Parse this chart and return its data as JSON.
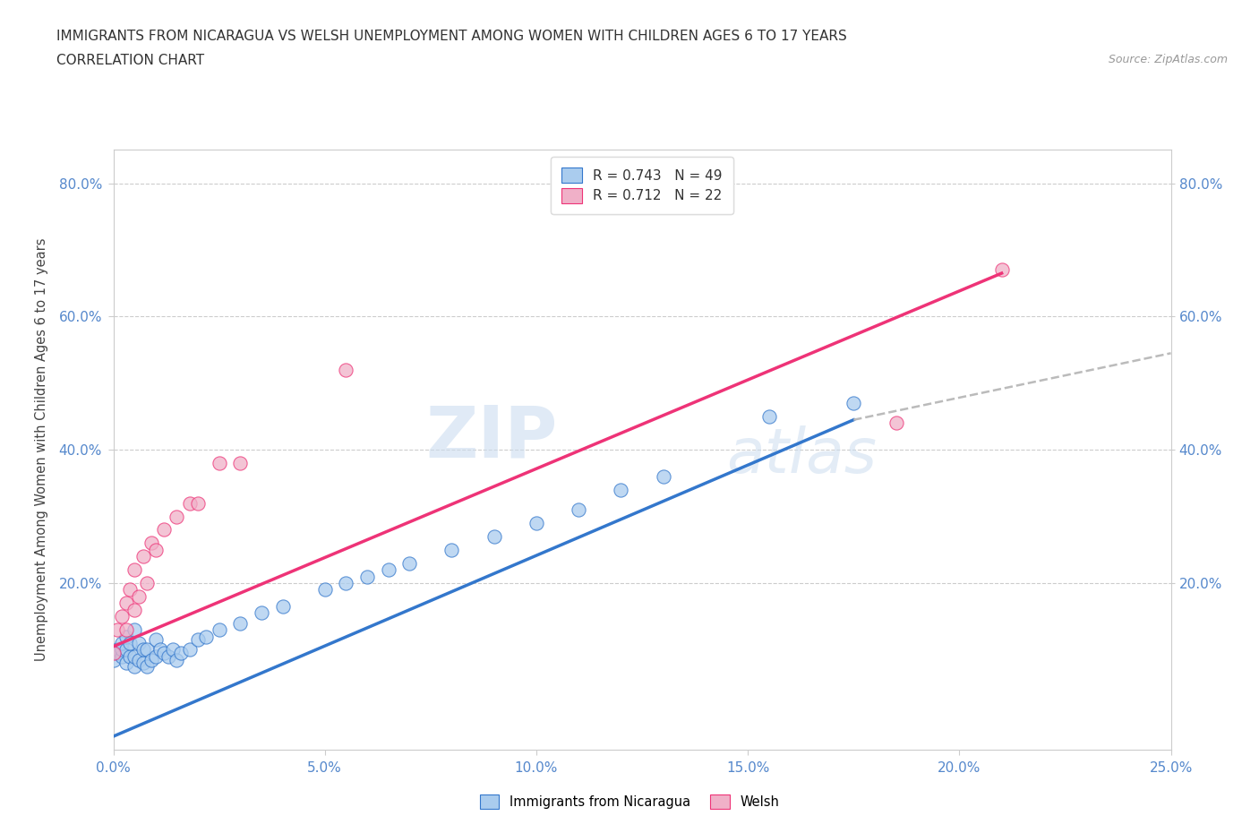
{
  "title_line1": "IMMIGRANTS FROM NICARAGUA VS WELSH UNEMPLOYMENT AMONG WOMEN WITH CHILDREN AGES 6 TO 17 YEARS",
  "title_line2": "CORRELATION CHART",
  "source": "Source: ZipAtlas.com",
  "ylabel": "Unemployment Among Women with Children Ages 6 to 17 years",
  "xlim": [
    0.0,
    0.25
  ],
  "ylim": [
    -0.05,
    0.85
  ],
  "xtick_labels": [
    "0.0%",
    "5.0%",
    "10.0%",
    "15.0%",
    "20.0%",
    "25.0%"
  ],
  "xtick_vals": [
    0.0,
    0.05,
    0.1,
    0.15,
    0.2,
    0.25
  ],
  "ytick_labels": [
    "20.0%",
    "40.0%",
    "60.0%",
    "80.0%"
  ],
  "ytick_vals": [
    0.2,
    0.4,
    0.6,
    0.8
  ],
  "legend_r1": "R = 0.743",
  "legend_n1": "N = 49",
  "legend_r2": "R = 0.712",
  "legend_n2": "N = 22",
  "color_nicaragua": "#aaccee",
  "color_welsh": "#f0b0c8",
  "color_line_nicaragua": "#3377cc",
  "color_line_welsh": "#ee3377",
  "color_line_dashed": "#bbbbbb",
  "watermark_zip": "ZIP",
  "watermark_atlas": "atlas",
  "background_color": "#ffffff",
  "scatter_nicaragua_x": [
    0.0,
    0.001,
    0.001,
    0.002,
    0.002,
    0.002,
    0.003,
    0.003,
    0.003,
    0.004,
    0.004,
    0.005,
    0.005,
    0.005,
    0.006,
    0.006,
    0.007,
    0.007,
    0.008,
    0.008,
    0.009,
    0.01,
    0.01,
    0.011,
    0.012,
    0.013,
    0.014,
    0.015,
    0.016,
    0.018,
    0.02,
    0.022,
    0.025,
    0.03,
    0.035,
    0.04,
    0.05,
    0.055,
    0.06,
    0.065,
    0.07,
    0.08,
    0.09,
    0.1,
    0.11,
    0.12,
    0.13,
    0.155,
    0.175
  ],
  "scatter_nicaragua_y": [
    0.085,
    0.1,
    0.095,
    0.09,
    0.1,
    0.11,
    0.08,
    0.1,
    0.12,
    0.09,
    0.11,
    0.075,
    0.09,
    0.13,
    0.085,
    0.11,
    0.08,
    0.1,
    0.075,
    0.1,
    0.085,
    0.09,
    0.115,
    0.1,
    0.095,
    0.09,
    0.1,
    0.085,
    0.095,
    0.1,
    0.115,
    0.12,
    0.13,
    0.14,
    0.155,
    0.165,
    0.19,
    0.2,
    0.21,
    0.22,
    0.23,
    0.25,
    0.27,
    0.29,
    0.31,
    0.34,
    0.36,
    0.45,
    0.47
  ],
  "scatter_welsh_x": [
    0.0,
    0.001,
    0.002,
    0.003,
    0.003,
    0.004,
    0.005,
    0.005,
    0.006,
    0.007,
    0.008,
    0.009,
    0.01,
    0.012,
    0.015,
    0.018,
    0.02,
    0.025,
    0.03,
    0.055,
    0.185,
    0.21
  ],
  "scatter_welsh_y": [
    0.095,
    0.13,
    0.15,
    0.13,
    0.17,
    0.19,
    0.16,
    0.22,
    0.18,
    0.24,
    0.2,
    0.26,
    0.25,
    0.28,
    0.3,
    0.32,
    0.32,
    0.38,
    0.38,
    0.52,
    0.44,
    0.67
  ],
  "line_nic_x0": 0.0,
  "line_nic_y0": -0.03,
  "line_nic_x1": 0.175,
  "line_nic_y1": 0.445,
  "line_nic_ext_x1": 0.25,
  "line_nic_ext_y1": 0.545,
  "line_welsh_x0": 0.0,
  "line_welsh_y0": 0.105,
  "line_welsh_x1": 0.21,
  "line_welsh_y1": 0.665
}
